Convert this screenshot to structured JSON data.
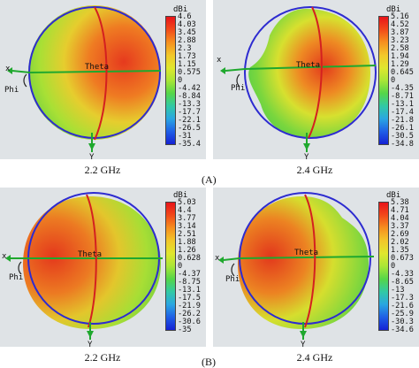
{
  "figure": {
    "row_A": {
      "label": "(A)",
      "plots": [
        {
          "caption": "2.2 GHz",
          "unit": "dBi",
          "axes": {
            "x": "x",
            "y": "Y",
            "phi": "Phi",
            "theta": "Theta"
          },
          "scale": [
            "4.6",
            "4.03",
            "3.45",
            "2.88",
            "2.3",
            "1.73",
            "1.15",
            "0.575",
            "0",
            "-4.42",
            "-8.84",
            "-13.3",
            "-17.7",
            "-22.1",
            "-26.5",
            "-31",
            "-35.4"
          ]
        },
        {
          "caption": "2.4 GHz",
          "unit": "dBi",
          "axes": {
            "x": "x",
            "y": "Y",
            "phi": "Phi",
            "theta": "Theta"
          },
          "scale": [
            "5.16",
            "4.52",
            "3.87",
            "3.23",
            "2.58",
            "1.94",
            "1.29",
            "0.645",
            "0",
            "-4.35",
            "-8.71",
            "-13.1",
            "-17.4",
            "-21.8",
            "-26.1",
            "-30.5",
            "-34.8"
          ]
        }
      ]
    },
    "row_B": {
      "label": "(B)",
      "plots": [
        {
          "caption": "2.2 GHz",
          "unit": "dBi",
          "axes": {
            "x": "x",
            "y": "Y",
            "phi": "Phi",
            "theta": "Theta"
          },
          "scale": [
            "5.03",
            "4.4",
            "3.77",
            "3.14",
            "2.51",
            "1.88",
            "1.26",
            "0.628",
            "0",
            "-4.37",
            "-8.75",
            "-13.1",
            "-17.5",
            "-21.9",
            "-26.2",
            "-30.6",
            "-35"
          ]
        },
        {
          "caption": "2.4 GHz",
          "unit": "dBi",
          "axes": {
            "x": "x",
            "y": "Y",
            "phi": "Phi",
            "theta": "Theta"
          },
          "scale": [
            "5.38",
            "4.71",
            "4.04",
            "3.37",
            "2.69",
            "2.02",
            "1.35",
            "0.673",
            "0",
            "-4.33",
            "-8.65",
            "-13",
            "-17.3",
            "-21.6",
            "-25.9",
            "-30.3",
            "-34.6"
          ]
        }
      ]
    }
  }
}
